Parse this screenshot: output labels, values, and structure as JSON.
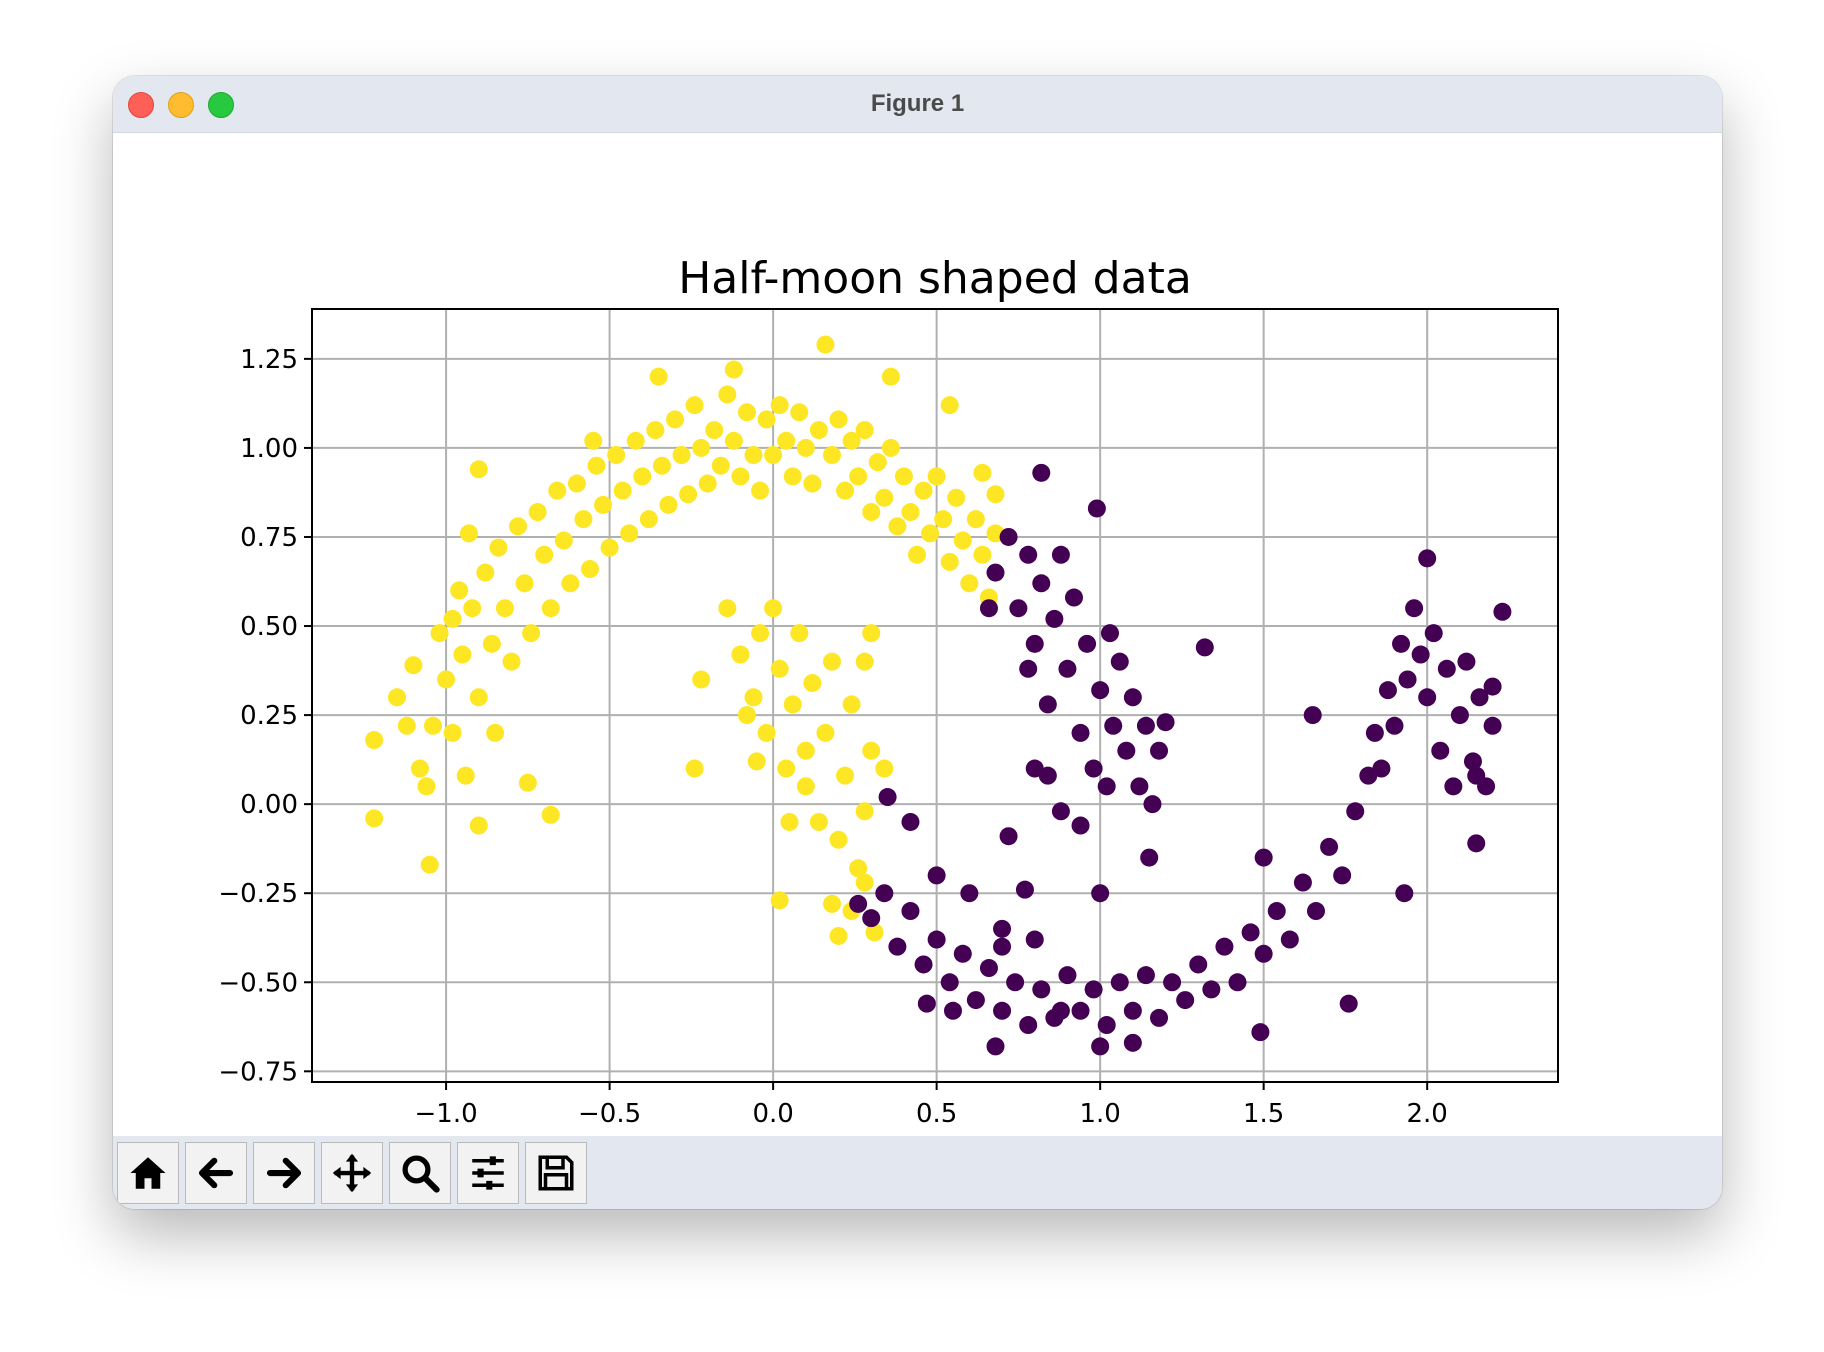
{
  "window": {
    "title": "Figure 1"
  },
  "toolbar": {
    "buttons": [
      {
        "name": "home-button",
        "icon": "home-icon"
      },
      {
        "name": "back-button",
        "icon": "arrow-left-icon"
      },
      {
        "name": "forward-button",
        "icon": "arrow-right-icon"
      },
      {
        "name": "pan-button",
        "icon": "move-icon"
      },
      {
        "name": "zoom-button",
        "icon": "search-icon"
      },
      {
        "name": "configure-subplots-button",
        "icon": "sliders-icon"
      },
      {
        "name": "save-button",
        "icon": "floppy-disk-icon"
      }
    ]
  },
  "chart_data": {
    "type": "scatter",
    "title": "Half-moon shaped data",
    "xlabel": "",
    "ylabel": "",
    "xlim": [
      -1.41,
      2.4
    ],
    "ylim": [
      -0.78,
      1.39
    ],
    "xticks": [
      {
        "v": -1.0,
        "label": "−1.0"
      },
      {
        "v": -0.5,
        "label": "−0.5"
      },
      {
        "v": 0.0,
        "label": "0.0"
      },
      {
        "v": 0.5,
        "label": "0.5"
      },
      {
        "v": 1.0,
        "label": "1.0"
      },
      {
        "v": 1.5,
        "label": "1.5"
      },
      {
        "v": 2.0,
        "label": "2.0"
      }
    ],
    "yticks": [
      {
        "v": 1.25,
        "label": "1.25"
      },
      {
        "v": 1.0,
        "label": "1.00"
      },
      {
        "v": 0.75,
        "label": "0.75"
      },
      {
        "v": 0.5,
        "label": "0.50"
      },
      {
        "v": 0.25,
        "label": "0.25"
      },
      {
        "v": 0.0,
        "label": "0.00"
      },
      {
        "v": -0.25,
        "label": "−0.25"
      },
      {
        "v": -0.5,
        "label": "−0.50"
      },
      {
        "v": -0.75,
        "label": "−0.75"
      }
    ],
    "grid": true,
    "series": [
      {
        "color": "#fde725",
        "points": [
          [
            -1.22,
            0.18
          ],
          [
            -1.15,
            0.3
          ],
          [
            -1.12,
            0.22
          ],
          [
            -1.1,
            0.39
          ],
          [
            -1.08,
            0.1
          ],
          [
            -1.06,
            0.05
          ],
          [
            -1.04,
            0.22
          ],
          [
            -1.02,
            0.48
          ],
          [
            -1.0,
            0.35
          ],
          [
            -0.98,
            0.52
          ],
          [
            -0.98,
            0.2
          ],
          [
            -0.96,
            0.6
          ],
          [
            -0.95,
            0.42
          ],
          [
            -0.94,
            0.08
          ],
          [
            -0.92,
            0.55
          ],
          [
            -0.9,
            0.3
          ],
          [
            -0.88,
            0.65
          ],
          [
            -0.86,
            0.45
          ],
          [
            -0.85,
            0.2
          ],
          [
            -0.84,
            0.72
          ],
          [
            -0.82,
            0.55
          ],
          [
            -0.8,
            0.4
          ],
          [
            -0.78,
            0.78
          ],
          [
            -0.76,
            0.62
          ],
          [
            -0.74,
            0.48
          ],
          [
            -0.72,
            0.82
          ],
          [
            -0.7,
            0.7
          ],
          [
            -0.68,
            0.55
          ],
          [
            -0.66,
            0.88
          ],
          [
            -0.64,
            0.74
          ],
          [
            -0.62,
            0.62
          ],
          [
            -0.6,
            0.9
          ],
          [
            -0.58,
            0.8
          ],
          [
            -0.56,
            0.66
          ],
          [
            -0.54,
            0.95
          ],
          [
            -0.52,
            0.84
          ],
          [
            -0.5,
            0.72
          ],
          [
            -0.48,
            0.98
          ],
          [
            -0.46,
            0.88
          ],
          [
            -0.44,
            0.76
          ],
          [
            -0.42,
            1.02
          ],
          [
            -0.4,
            0.92
          ],
          [
            -0.38,
            0.8
          ],
          [
            -0.36,
            1.05
          ],
          [
            -0.34,
            0.95
          ],
          [
            -0.32,
            0.84
          ],
          [
            -0.3,
            1.08
          ],
          [
            -0.28,
            0.98
          ],
          [
            -0.26,
            0.87
          ],
          [
            -0.24,
            1.12
          ],
          [
            -0.22,
            1.0
          ],
          [
            -0.2,
            0.9
          ],
          [
            -0.18,
            1.05
          ],
          [
            -0.16,
            0.95
          ],
          [
            -0.14,
            1.15
          ],
          [
            -0.12,
            1.02
          ],
          [
            -0.1,
            0.92
          ],
          [
            -0.08,
            1.1
          ],
          [
            -0.06,
            0.98
          ],
          [
            -0.04,
            0.88
          ],
          [
            -0.02,
            1.08
          ],
          [
            0.0,
            0.98
          ],
          [
            0.02,
            1.12
          ],
          [
            0.04,
            1.02
          ],
          [
            0.06,
            0.92
          ],
          [
            0.08,
            1.1
          ],
          [
            0.1,
            1.0
          ],
          [
            0.12,
            0.9
          ],
          [
            0.14,
            1.05
          ],
          [
            0.16,
            1.29
          ],
          [
            0.18,
            0.98
          ],
          [
            0.2,
            1.08
          ],
          [
            0.22,
            0.88
          ],
          [
            0.24,
            1.02
          ],
          [
            0.26,
            0.92
          ],
          [
            0.28,
            1.05
          ],
          [
            0.3,
            0.82
          ],
          [
            0.32,
            0.96
          ],
          [
            0.34,
            0.86
          ],
          [
            0.36,
            1.0
          ],
          [
            0.38,
            0.78
          ],
          [
            0.4,
            0.92
          ],
          [
            0.42,
            0.82
          ],
          [
            0.44,
            0.7
          ],
          [
            0.46,
            0.88
          ],
          [
            0.48,
            0.76
          ],
          [
            0.5,
            0.92
          ],
          [
            0.52,
            0.8
          ],
          [
            0.54,
            0.68
          ],
          [
            0.56,
            0.86
          ],
          [
            0.58,
            0.74
          ],
          [
            0.6,
            0.62
          ],
          [
            0.62,
            0.8
          ],
          [
            0.64,
            0.7
          ],
          [
            0.66,
            0.58
          ],
          [
            0.68,
            0.76
          ],
          [
            -1.22,
            -0.04
          ],
          [
            -1.05,
            -0.17
          ],
          [
            -0.9,
            -0.06
          ],
          [
            -0.75,
            0.06
          ],
          [
            -0.68,
            -0.03
          ],
          [
            -0.93,
            0.76
          ],
          [
            -0.9,
            0.94
          ],
          [
            -0.55,
            1.02
          ],
          [
            -0.35,
            1.2
          ],
          [
            -0.12,
            1.22
          ],
          [
            0.36,
            1.2
          ],
          [
            0.54,
            1.12
          ],
          [
            0.64,
            0.93
          ],
          [
            0.68,
            0.87
          ],
          [
            -0.22,
            0.35
          ],
          [
            -0.14,
            0.55
          ],
          [
            -0.1,
            0.42
          ],
          [
            -0.06,
            0.3
          ],
          [
            -0.04,
            0.48
          ],
          [
            -0.02,
            0.2
          ],
          [
            0.0,
            0.55
          ],
          [
            0.02,
            0.38
          ],
          [
            0.04,
            0.1
          ],
          [
            0.06,
            0.28
          ],
          [
            0.08,
            0.48
          ],
          [
            0.1,
            0.15
          ],
          [
            0.12,
            0.34
          ],
          [
            0.14,
            -0.05
          ],
          [
            0.16,
            0.2
          ],
          [
            0.18,
            0.4
          ],
          [
            0.2,
            -0.1
          ],
          [
            0.22,
            0.08
          ],
          [
            0.24,
            0.28
          ],
          [
            0.26,
            -0.18
          ],
          [
            0.28,
            -0.02
          ],
          [
            0.3,
            0.15
          ],
          [
            0.24,
            -0.3
          ],
          [
            0.28,
            -0.22
          ],
          [
            0.18,
            -0.28
          ],
          [
            0.02,
            -0.27
          ],
          [
            -0.24,
            0.1
          ],
          [
            0.3,
            0.48
          ],
          [
            0.34,
            0.1
          ],
          [
            0.2,
            -0.37
          ],
          [
            0.31,
            -0.36
          ],
          [
            0.05,
            -0.05
          ],
          [
            -0.05,
            0.12
          ],
          [
            0.1,
            0.05
          ],
          [
            -0.08,
            0.25
          ],
          [
            0.28,
            0.4
          ]
        ]
      },
      {
        "color": "#440154",
        "points": [
          [
            0.68,
            0.65
          ],
          [
            0.72,
            0.75
          ],
          [
            0.75,
            0.55
          ],
          [
            0.78,
            0.7
          ],
          [
            0.8,
            0.45
          ],
          [
            0.82,
            0.62
          ],
          [
            0.84,
            0.28
          ],
          [
            0.86,
            0.52
          ],
          [
            0.88,
            0.7
          ],
          [
            0.9,
            0.38
          ],
          [
            0.92,
            0.58
          ],
          [
            0.94,
            0.2
          ],
          [
            0.96,
            0.45
          ],
          [
            0.98,
            0.1
          ],
          [
            1.0,
            0.32
          ],
          [
            1.02,
            0.05
          ],
          [
            1.04,
            0.22
          ],
          [
            1.06,
            0.4
          ],
          [
            1.08,
            0.15
          ],
          [
            1.1,
            0.3
          ],
          [
            1.12,
            0.05
          ],
          [
            1.14,
            0.22
          ],
          [
            1.16,
            0.0
          ],
          [
            1.18,
            0.15
          ],
          [
            0.8,
            0.1
          ],
          [
            0.88,
            -0.02
          ],
          [
            0.94,
            -0.06
          ],
          [
            0.82,
            0.93
          ],
          [
            0.99,
            0.83
          ],
          [
            1.03,
            0.48
          ],
          [
            1.32,
            0.44
          ],
          [
            1.2,
            0.23
          ],
          [
            0.66,
            0.55
          ],
          [
            0.78,
            0.38
          ],
          [
            0.84,
            0.08
          ],
          [
            0.26,
            -0.28
          ],
          [
            0.3,
            -0.32
          ],
          [
            0.34,
            -0.25
          ],
          [
            0.38,
            -0.4
          ],
          [
            0.42,
            -0.3
          ],
          [
            0.46,
            -0.45
          ],
          [
            0.5,
            -0.38
          ],
          [
            0.54,
            -0.5
          ],
          [
            0.58,
            -0.42
          ],
          [
            0.62,
            -0.55
          ],
          [
            0.66,
            -0.46
          ],
          [
            0.7,
            -0.58
          ],
          [
            0.74,
            -0.5
          ],
          [
            0.78,
            -0.62
          ],
          [
            0.82,
            -0.52
          ],
          [
            0.86,
            -0.6
          ],
          [
            0.9,
            -0.48
          ],
          [
            0.94,
            -0.58
          ],
          [
            0.98,
            -0.52
          ],
          [
            1.02,
            -0.62
          ],
          [
            1.06,
            -0.5
          ],
          [
            1.1,
            -0.58
          ],
          [
            1.14,
            -0.48
          ],
          [
            1.18,
            -0.6
          ],
          [
            1.22,
            -0.5
          ],
          [
            1.26,
            -0.55
          ],
          [
            1.3,
            -0.45
          ],
          [
            1.34,
            -0.52
          ],
          [
            1.38,
            -0.4
          ],
          [
            1.42,
            -0.5
          ],
          [
            1.46,
            -0.36
          ],
          [
            1.5,
            -0.42
          ],
          [
            1.54,
            -0.3
          ],
          [
            1.58,
            -0.38
          ],
          [
            1.62,
            -0.22
          ],
          [
            1.66,
            -0.3
          ],
          [
            1.7,
            -0.12
          ],
          [
            1.74,
            -0.2
          ],
          [
            1.78,
            -0.02
          ],
          [
            1.82,
            0.08
          ],
          [
            1.84,
            0.2
          ],
          [
            1.86,
            0.1
          ],
          [
            1.88,
            0.32
          ],
          [
            1.9,
            0.22
          ],
          [
            1.92,
            0.45
          ],
          [
            1.94,
            0.35
          ],
          [
            1.96,
            0.55
          ],
          [
            1.98,
            0.42
          ],
          [
            2.0,
            0.3
          ],
          [
            2.02,
            0.48
          ],
          [
            2.04,
            0.15
          ],
          [
            2.06,
            0.38
          ],
          [
            2.08,
            0.05
          ],
          [
            2.1,
            0.25
          ],
          [
            2.12,
            0.4
          ],
          [
            2.14,
            0.12
          ],
          [
            2.16,
            0.3
          ],
          [
            2.18,
            0.05
          ],
          [
            2.2,
            0.22
          ],
          [
            0.35,
            0.02
          ],
          [
            0.42,
            -0.05
          ],
          [
            0.5,
            -0.2
          ],
          [
            0.6,
            -0.25
          ],
          [
            0.7,
            -0.35
          ],
          [
            0.8,
            -0.38
          ],
          [
            1.0,
            -0.68
          ],
          [
            1.1,
            -0.67
          ],
          [
            0.68,
            -0.68
          ],
          [
            1.49,
            -0.64
          ],
          [
            1.76,
            -0.56
          ],
          [
            1.93,
            -0.25
          ],
          [
            2.0,
            0.69
          ],
          [
            2.23,
            0.54
          ],
          [
            2.2,
            0.33
          ],
          [
            2.15,
            0.08
          ],
          [
            2.15,
            -0.11
          ],
          [
            1.65,
            0.25
          ],
          [
            1.5,
            -0.15
          ],
          [
            1.0,
            -0.25
          ],
          [
            1.15,
            -0.15
          ],
          [
            0.77,
            -0.24
          ],
          [
            0.72,
            -0.09
          ],
          [
            0.88,
            -0.58
          ],
          [
            0.47,
            -0.56
          ],
          [
            0.55,
            -0.58
          ],
          [
            0.7,
            -0.4
          ]
        ]
      }
    ]
  }
}
